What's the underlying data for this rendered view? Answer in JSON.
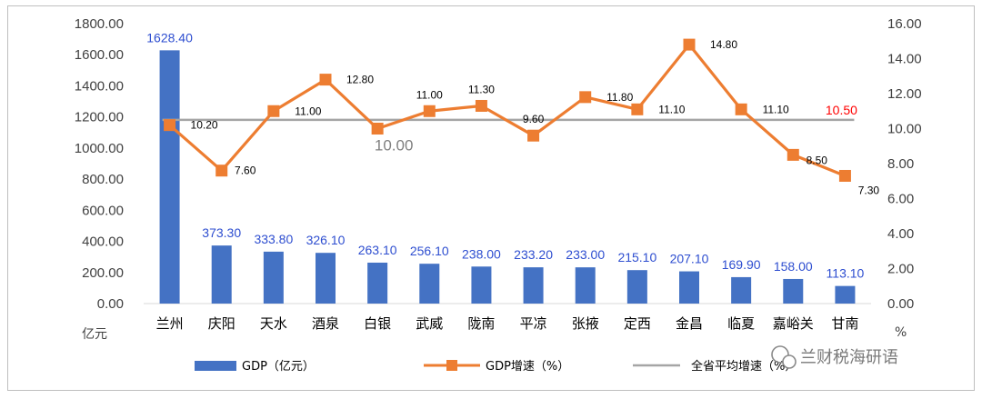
{
  "chart_data": {
    "type": "bar",
    "categories": [
      "兰州",
      "庆阳",
      "天水",
      "酒泉",
      "白银",
      "武威",
      "陇南",
      "平凉",
      "张掖",
      "定西",
      "金昌",
      "临夏",
      "嘉峪关",
      "甘南"
    ],
    "series": [
      {
        "name": "GDP（亿元）",
        "type": "bar",
        "axis": "left",
        "values": [
          1628.4,
          373.3,
          333.8,
          326.1,
          263.1,
          256.1,
          238.0,
          233.2,
          233.0,
          215.1,
          207.1,
          169.9,
          158.0,
          113.1
        ]
      },
      {
        "name": "GDP增速（%）",
        "type": "line",
        "axis": "right",
        "values": [
          10.2,
          7.6,
          11.0,
          12.8,
          10.0,
          11.0,
          11.3,
          9.6,
          11.8,
          11.1,
          14.8,
          11.1,
          8.5,
          7.3
        ]
      },
      {
        "name": "全省平均增速（%）",
        "type": "line",
        "axis": "right",
        "values": [
          10.5,
          10.5,
          10.5,
          10.5,
          10.5,
          10.5,
          10.5,
          10.5,
          10.5,
          10.5,
          10.5,
          10.5,
          10.5,
          10.5
        ]
      }
    ],
    "bar_labels": [
      "1628.40",
      "373.30",
      "333.80",
      "326.10",
      "263.10",
      "256.10",
      "238.00",
      "233.20",
      "233.00",
      "215.10",
      "207.10",
      "169.90",
      "158.00",
      "113.10"
    ],
    "line_labels": [
      "10.20",
      "7.60",
      "11.00",
      "12.80",
      "10.00",
      "11.00",
      "11.30",
      "9.60",
      "11.80",
      "11.10",
      "14.80",
      "11.10",
      "8.50",
      "7.30"
    ],
    "average_label": "10.50",
    "y_left": {
      "ticks": [
        "0.00",
        "200.00",
        "400.00",
        "600.00",
        "800.00",
        "1000.00",
        "1200.00",
        "1400.00",
        "1600.00",
        "1800.00"
      ],
      "range": [
        0,
        1800
      ],
      "unit": "亿元"
    },
    "y_right": {
      "ticks": [
        "0.00",
        "2.00",
        "4.00",
        "6.00",
        "8.00",
        "10.00",
        "12.00",
        "14.00",
        "16.00"
      ],
      "range": [
        0,
        16
      ],
      "unit": "%"
    },
    "grid": false,
    "legend_position": "bottom",
    "colors": {
      "bar": "#4472C4",
      "line": "#ED7D31",
      "avg": "#A5A5A5",
      "bar_label": "#2E4ED0",
      "avg_label": "#FF0000"
    }
  },
  "legend": {
    "items": [
      {
        "label": "GDP（亿元）"
      },
      {
        "label": "GDP增速（%）"
      },
      {
        "label": "全省平均增速（%）"
      }
    ]
  },
  "watermark": {
    "text": "兰财税海研语",
    "icon": "wechat-icon"
  }
}
